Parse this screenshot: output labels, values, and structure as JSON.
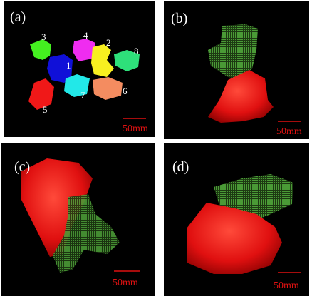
{
  "panels": [
    {
      "label": "(a)",
      "scale": "50mm",
      "parts": [
        "3",
        "4",
        "2",
        "8",
        "1",
        "7",
        "6",
        "5"
      ]
    },
    {
      "label": "(b)",
      "scale": "50mm"
    },
    {
      "label": "(c)",
      "scale": "50mm"
    },
    {
      "label": "(d)",
      "scale": "50mm"
    }
  ]
}
